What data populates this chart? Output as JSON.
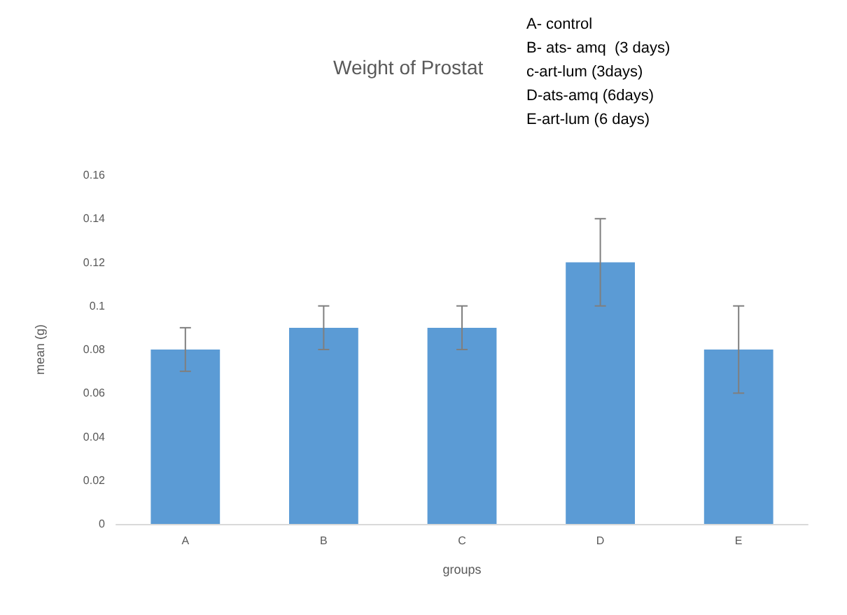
{
  "chart_data": {
    "type": "bar",
    "title": "Weight of Prostat",
    "xlabel": "groups",
    "ylabel": "mean (g)",
    "annotations": [
      "A- control",
      "B- ats- amq  (3 days)",
      "c-art-lum (3days)",
      "D-ats-amq (6days)",
      "E-art-lum (6 days)"
    ],
    "categories": [
      "A",
      "B",
      "C",
      "D",
      "E"
    ],
    "values": [
      0.08,
      0.09,
      0.09,
      0.12,
      0.08
    ],
    "errors": [
      0.01,
      0.01,
      0.01,
      0.02,
      0.02
    ],
    "color": "#5b9bd5",
    "ylim": [
      0,
      0.16
    ],
    "yticks": [
      0,
      0.02,
      0.04,
      0.06,
      0.08,
      0.1,
      0.12,
      0.14,
      0.16
    ],
    "grid": false
  }
}
